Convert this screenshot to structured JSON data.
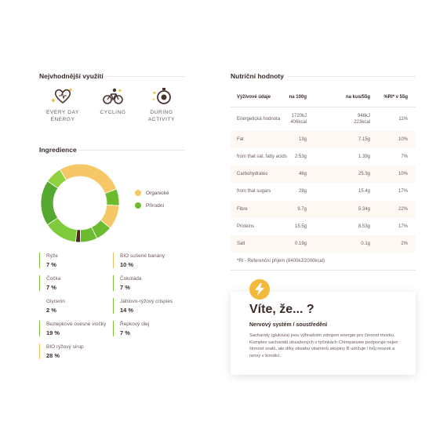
{
  "usage": {
    "title": "Nejvhodnější využití",
    "items": [
      {
        "icon": "heart-sparkle-icon",
        "label_line1": "EVERY DAY",
        "label_line2": "ENERGY"
      },
      {
        "icon": "cycling-icon",
        "label_line1": "CYCLING",
        "label_line2": ""
      },
      {
        "icon": "stopwatch-icon",
        "label_line1": "DURING ACTIVITY",
        "label_line2": ""
      }
    ]
  },
  "ingredients": {
    "title": "Ingredience",
    "legend": [
      {
        "label": "Organické",
        "color": "#f6c766"
      },
      {
        "label": "Přírodní",
        "color": "#6cbb2f"
      }
    ],
    "items": [
      {
        "name": "Rýže",
        "pct": "7 %",
        "type": "green"
      },
      {
        "name": "BIO sušené banány",
        "pct": "10 %",
        "type": "yellow"
      },
      {
        "name": "Čočka",
        "pct": "7 %",
        "type": "green"
      },
      {
        "name": "Čokoláda",
        "pct": "7 %",
        "type": "green"
      },
      {
        "name": "Glycerin",
        "pct": "2 %",
        "type": "green"
      },
      {
        "name": "Jáhlovo-rýžový crispies",
        "pct": "14 %",
        "type": "green"
      },
      {
        "name": "Bezlepkové ovesné vločky",
        "pct": "19 %",
        "type": "green"
      },
      {
        "name": "Řepkový olej",
        "pct": "7 %",
        "type": "green"
      },
      {
        "name": "BIO rýžový sirup",
        "pct": "28 %",
        "type": "yellow"
      }
    ]
  },
  "chart_data": {
    "type": "pie",
    "variant": "donut",
    "series": [
      {
        "label": "BIO rýžový sirup",
        "value": 28,
        "color": "#f6c766"
      },
      {
        "label": "Rýže",
        "value": 7,
        "color": "#6cbb2f"
      },
      {
        "label": "BIO sušené banány",
        "value": 10,
        "color": "#f6c766"
      },
      {
        "label": "Čočka",
        "value": 7,
        "color": "#6cbb2f"
      },
      {
        "label": "Čokoláda",
        "value": 7,
        "color": "#6cbb2f"
      },
      {
        "label": "Glycerin",
        "value": 2,
        "color": "#4a2a1e"
      },
      {
        "label": "Jáhlovo-rýžový crispies",
        "value": 14,
        "color": "#7fcb3b"
      },
      {
        "label": "Bezlepkové ovesné vločky",
        "value": 19,
        "color": "#55a830"
      },
      {
        "label": "Řepkový olej",
        "value": 7,
        "color": "#8fd240"
      }
    ]
  },
  "nutrition": {
    "title": "Nutriční hodnoty",
    "headers": [
      "Výživové údaje",
      "na 100g",
      "na kus/55g",
      "%RI* v 55g"
    ],
    "rows": [
      [
        "Energetická hodnota",
        "1720kJ\n406kcal",
        "946kJ\n223kcal",
        "11%"
      ],
      [
        "Fat",
        "13g",
        "7.15g",
        "10%"
      ],
      [
        "from that sat. fatty acids",
        "2.53g",
        "1.39g",
        "7%"
      ],
      [
        "Carbohydrates",
        "46g",
        "25.3g",
        "10%"
      ],
      [
        "from that sugars",
        "28g",
        "15.4g",
        "17%"
      ],
      [
        "Fibre",
        "9.7g",
        "5.34g",
        "22%"
      ],
      [
        "Proteins",
        "15.5g",
        "8.53g",
        "17%"
      ],
      [
        "Salt",
        "0.19g",
        "0.1g",
        "2%"
      ]
    ],
    "footnote": "*RI - Referenční příjem (8400kJ/2000kcal)"
  },
  "did_you_know": {
    "title": "Víte, že... ?",
    "subtitle": "Nervový systém / soustředění",
    "text": "Sacharidy (glukóza) jsou výhradním zdrojem energie pro činnost mozku. Komplex sacharidů obsažených v tyčinkách Chimpanzee podporuje nejen činnost svalů, ale díky obsahu vitamínů skupiny B udržuje i tvůj mozek a nervy v kondici."
  }
}
